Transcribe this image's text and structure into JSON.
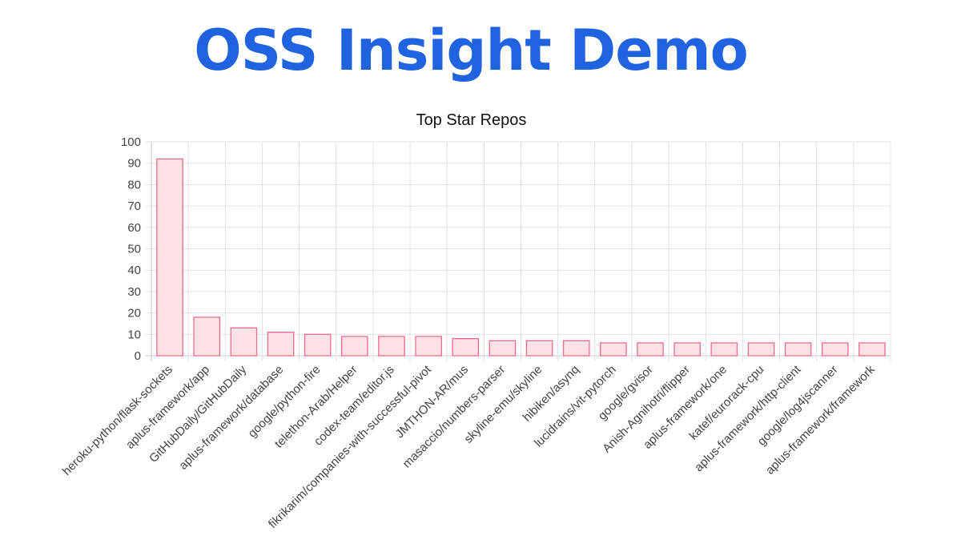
{
  "page": {
    "title": "OSS Insight Demo"
  },
  "chart_data": {
    "type": "bar",
    "title": "Top Star Repos",
    "xlabel": "",
    "ylabel": "",
    "ylim": [
      0,
      100
    ],
    "yticks": [
      0,
      10,
      20,
      30,
      40,
      50,
      60,
      70,
      80,
      90,
      100
    ],
    "grid": true,
    "legend": "none",
    "colors": {
      "bar_fill": "#ffe1e6",
      "bar_stroke": "#f06a8b",
      "title": "#1f63e0"
    },
    "categories": [
      "heroku-python/flask-sockets",
      "aplus-framework/app",
      "GitHubDaily/GitHubDaily",
      "aplus-framework/database",
      "google/python-fire",
      "telethon-Arab/Helper",
      "codex-team/editor.js",
      "fikrikarim/companies-with-successful-pivot",
      "JMTHON-AR/mus",
      "masaccio/numbers-parser",
      "skyline-emu/skyline",
      "hibiken/asynq",
      "lucidrains/vit-pytorch",
      "google/gvisor",
      "Anish-Agnihotri/flipper",
      "aplus-framework/one",
      "katef/eurorack-cpu",
      "aplus-framework/http-client",
      "google/log4jscanner",
      "aplus-framework/framework"
    ],
    "values": [
      92,
      18,
      13,
      11,
      10,
      9,
      9,
      9,
      8,
      7,
      7,
      7,
      6,
      6,
      6,
      6,
      6,
      6,
      6,
      6
    ]
  }
}
